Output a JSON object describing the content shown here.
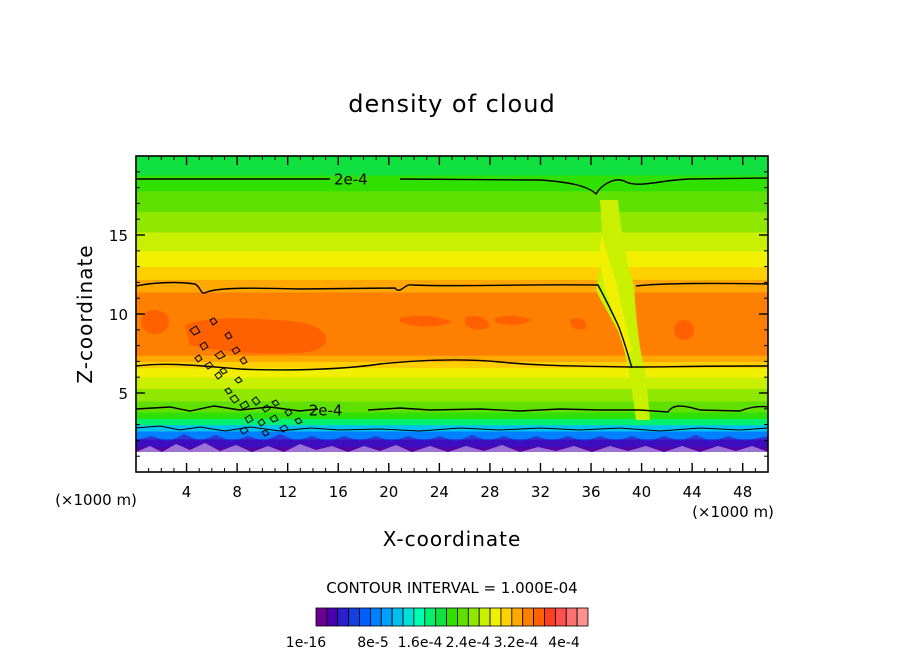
{
  "chart_data": {
    "type": "heatmap",
    "title": "density of cloud",
    "xlabel": "X-coordinate",
    "ylabel": "Z-coordinate",
    "x_unit_label": "(×1000 m)",
    "xlim": [
      0,
      50
    ],
    "ylim": [
      0,
      20
    ],
    "x_ticks": [
      4,
      8,
      12,
      16,
      20,
      24,
      28,
      32,
      36,
      40,
      44,
      48
    ],
    "y_ticks": [
      5,
      10,
      15
    ],
    "contour_interval_text": "CONTOUR INTERVAL = 1.000E-04",
    "contour_labels": [
      {
        "text": "2e-4",
        "x": 17.0,
        "z": 18.5
      },
      {
        "text": "2e-4",
        "x": 15.0,
        "z": 3.9
      }
    ],
    "colorbar": {
      "colors": [
        "#6a0090",
        "#4a00b0",
        "#2a20d0",
        "#1440e0",
        "#0060ff",
        "#0080ff",
        "#00a0ff",
        "#00c0f0",
        "#00e0d8",
        "#00ffb0",
        "#00f070",
        "#10e040",
        "#30e000",
        "#60e000",
        "#90e800",
        "#c8f000",
        "#f0f000",
        "#ffd000",
        "#ffa800",
        "#ff8000",
        "#ff6000",
        "#ff4020",
        "#ff5050",
        "#ff7070",
        "#ff9090"
      ],
      "labels": [
        "1e-16",
        "8e-5",
        "1.6e-4",
        "2.4e-4",
        "3.2e-4",
        "4e-4"
      ]
    },
    "bands": [
      {
        "z": [
          0.0,
          1.0
        ],
        "color": "#ffffff"
      },
      {
        "z": [
          1.0,
          1.6
        ],
        "color": "#6a0090"
      },
      {
        "z": [
          1.6,
          2.1
        ],
        "color": "#2a20d0"
      },
      {
        "z": [
          2.1,
          2.6
        ],
        "color": "#0080ff"
      },
      {
        "z": [
          2.6,
          3.0
        ],
        "color": "#00c0f0"
      },
      {
        "z": [
          3.0,
          3.4
        ],
        "color": "#00f070"
      },
      {
        "z": [
          3.4,
          3.8
        ],
        "color": "#30e000"
      },
      {
        "z": [
          3.8,
          4.5
        ],
        "color": "#60e000"
      },
      {
        "z": [
          4.5,
          5.3
        ],
        "color": "#90e800"
      },
      {
        "z": [
          5.3,
          6.0
        ],
        "color": "#c8f000"
      },
      {
        "z": [
          6.0,
          6.6
        ],
        "color": "#f0f000"
      },
      {
        "z": [
          6.6,
          7.0
        ],
        "color": "#ffd000"
      },
      {
        "z": [
          7.0,
          7.4
        ],
        "color": "#ffa800"
      },
      {
        "z": [
          7.4,
          11.4
        ],
        "color": "#ff8000"
      },
      {
        "z": [
          11.4,
          12.2
        ],
        "color": "#ffa800"
      },
      {
        "z": [
          12.2,
          13.0
        ],
        "color": "#ffd000"
      },
      {
        "z": [
          13.0,
          14.0
        ],
        "color": "#f0f000"
      },
      {
        "z": [
          14.0,
          15.2
        ],
        "color": "#c8f000"
      },
      {
        "z": [
          15.2,
          16.5
        ],
        "color": "#90e800"
      },
      {
        "z": [
          16.5,
          17.8
        ],
        "color": "#60e000"
      },
      {
        "z": [
          17.8,
          18.8
        ],
        "color": "#30e000"
      },
      {
        "z": [
          18.8,
          20.0
        ],
        "color": "#10e040"
      }
    ]
  }
}
